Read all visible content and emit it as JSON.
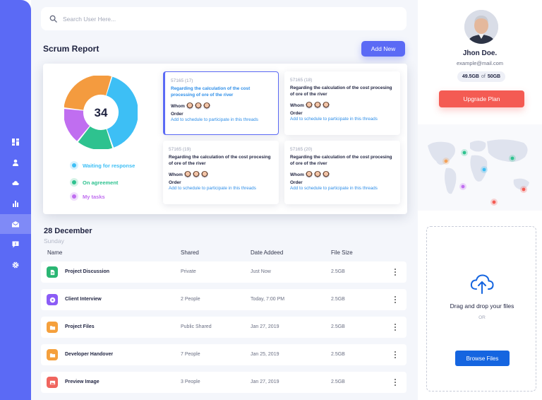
{
  "search": {
    "placeholder": "Search User Here..."
  },
  "header": {
    "title": "Scrum Report",
    "add_label": "Add New"
  },
  "report": {
    "total": "34",
    "donut": [
      {
        "label": "Waiting for response",
        "value": 40,
        "color": "#3dbff5"
      },
      {
        "label": "On agreement",
        "value": 16,
        "color": "#2ec28f"
      },
      {
        "label": "My tasks",
        "value": 16,
        "color": "#c06ef0"
      },
      {
        "label": "",
        "value": 28,
        "color": "#f49b3f"
      }
    ],
    "legend": [
      {
        "label": "Waiting for response",
        "color": "#3dbff5"
      },
      {
        "label": "On agreement",
        "color": "#2ec28f"
      },
      {
        "label": "My tasks",
        "color": "#c06ef0"
      }
    ],
    "cards": [
      {
        "id": "57165 (17)",
        "title": "Regarding the calculation of the cost processing of ore of the river",
        "whom": "Whom",
        "order": "Order",
        "link": "Add to schedule to participate in this threads"
      },
      {
        "id": "57165 (18)",
        "title": "Regarding the calculation of the cost procesing of ore of the river",
        "whom": "Whom",
        "order": "Order",
        "link": "Add to schedule to participate in this threads"
      },
      {
        "id": "57165 (19)",
        "title": "Regarding the calculation of the cost procesing of ore of the river",
        "whom": "Whom",
        "order": "Order",
        "link": "Add to schedule to participate in this threads"
      },
      {
        "id": "57165 (20)",
        "title": "Regarding the calculation of the cost procesing of ore of the river",
        "whom": "Whom",
        "order": "Order",
        "link": "Add to schedule to participate in this threads"
      }
    ]
  },
  "files": {
    "date": "28 December",
    "day": "Sunday",
    "columns": [
      "Name",
      "Shared",
      "Date Addeed",
      "File Size"
    ],
    "rows": [
      {
        "name": "Project Discussion",
        "shared": "Private",
        "date": "Just Now",
        "size": "2.5GB",
        "icon": "document-icon",
        "color": "#2ab673"
      },
      {
        "name": "Client Interview",
        "shared": "2 People",
        "date": "Today, 7:00 PM",
        "size": "2.5GB",
        "icon": "play-icon",
        "color": "#8b5cf6"
      },
      {
        "name": "Project Files",
        "shared": "Public Shared",
        "date": "Jan 27, 2019",
        "size": "2.5GB",
        "icon": "folder-icon",
        "color": "#f5a03c"
      },
      {
        "name": "Developer Handover",
        "shared": "7 People",
        "date": "Jan 25, 2019",
        "size": "2.5GB",
        "icon": "folder-icon",
        "color": "#f5a03c"
      },
      {
        "name": "Preview Image",
        "shared": "3 People",
        "date": "Jan 27, 2019",
        "size": "2.5GB",
        "icon": "image-icon",
        "color": "#f0655e"
      }
    ]
  },
  "profile": {
    "name": "Jhon Doe.",
    "email": "example@mail.com",
    "used": "49.5GB",
    "of": "of",
    "total": "50GB",
    "upgrade_label": "Upgrade Plan"
  },
  "map": {
    "markers": [
      {
        "color": "#f4a259"
      },
      {
        "color": "#2ec28f"
      },
      {
        "color": "#c06ef0"
      },
      {
        "color": "#3dbff5"
      },
      {
        "color": "#2ec28f"
      },
      {
        "color": "#f45b53"
      },
      {
        "color": "#f45b53"
      }
    ]
  },
  "upload": {
    "drag_text": "Drag and drop your files",
    "or_text": "OR",
    "browse_label": "Browse Files"
  },
  "colors": {
    "accent": "#5b6af5",
    "danger": "#f45b53",
    "browse": "#1565e0"
  }
}
